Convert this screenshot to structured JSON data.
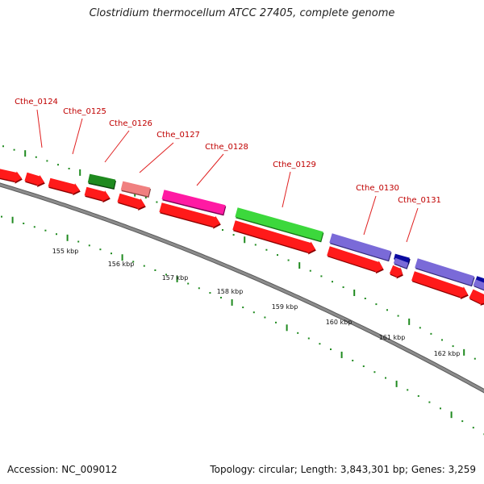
{
  "title": "Clostridium thermocellum ATCC 27405, complete genome",
  "footer": {
    "accession": "Accession: NC_009012",
    "summary": "Topology: circular; Length: 3,843,301 bp; Genes: 3,259"
  },
  "colors": {
    "background": "#ffffff",
    "backbone": "#8c8c8c",
    "tick": "#1f8a1f",
    "label": "#c00000",
    "leader": "#e02020"
  },
  "gene_labels": [
    {
      "name": "Cthe_0124"
    },
    {
      "name": "Cthe_0125"
    },
    {
      "name": "Cthe_0126"
    },
    {
      "name": "Cthe_0127"
    },
    {
      "name": "Cthe_0128"
    },
    {
      "name": "Cthe_0129"
    },
    {
      "name": "Cthe_0130"
    },
    {
      "name": "Cthe_0131"
    }
  ],
  "scale_labels": [
    "155 kbp",
    "156 kbp",
    "157 kbp",
    "158 kbp",
    "159 kbp",
    "160 kbp",
    "161 kbp",
    "162 kbp"
  ]
}
